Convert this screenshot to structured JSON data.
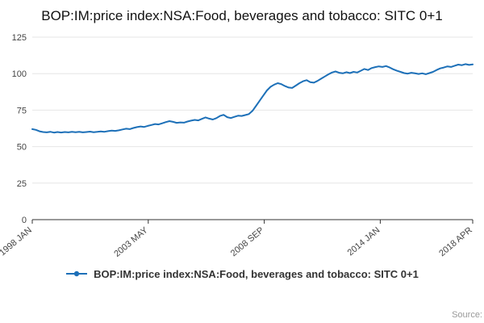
{
  "title": "BOP:IM:price index:NSA:Food, beverages and tobacco: SITC 0+1",
  "legend": {
    "label": "BOP:IM:price index:NSA:Food, beverages and tobacco: SITC 0+1"
  },
  "source": {
    "label": "Source:"
  },
  "colors": {
    "line": "#1d70b8",
    "grid": "#e6e6e6",
    "axis": "#333333",
    "tick_text": "#444444"
  },
  "chart_data": {
    "type": "line",
    "title": "BOP:IM:price index:NSA:Food, beverages and tobacco: SITC 0+1",
    "xlabel": "",
    "ylabel": "",
    "ylim": [
      0,
      125
    ],
    "y_ticks": [
      0,
      25,
      50,
      75,
      100,
      125
    ],
    "grid": true,
    "legend_position": "bottom",
    "x_range_months": [
      0,
      243
    ],
    "x_ticks": [
      {
        "month": 0,
        "label": "1998 JAN"
      },
      {
        "month": 64,
        "label": "2003 MAY"
      },
      {
        "month": 128,
        "label": "2008 SEP"
      },
      {
        "month": 192,
        "label": "2014 JAN"
      },
      {
        "month": 243,
        "label": "2018 APR"
      }
    ],
    "series": [
      {
        "name": "BOP:IM:price index:NSA:Food, beverages and tobacco: SITC 0+1",
        "color": "#1d70b8",
        "values": [
          62,
          61.5,
          60.5,
          60,
          59.8,
          60.2,
          59.6,
          60,
          59.7,
          60,
          59.8,
          60.1,
          59.9,
          60.2,
          59.8,
          60,
          60.3,
          59.9,
          60.1,
          60.4,
          60.2,
          60.6,
          61,
          60.8,
          61.2,
          61.8,
          62.3,
          62,
          62.8,
          63.4,
          63.8,
          63.5,
          64.2,
          64.8,
          65.5,
          65.2,
          66,
          66.8,
          67.5,
          67,
          66.3,
          66.6,
          66.4,
          67.2,
          67.8,
          68.3,
          68,
          69,
          70,
          69.2,
          68.6,
          69.5,
          71,
          71.8,
          70.2,
          69.6,
          70.4,
          71.2,
          71,
          71.6,
          72.3,
          74.5,
          78,
          81.5,
          85,
          88.5,
          91,
          92.5,
          93.5,
          92.8,
          91.5,
          90.5,
          90.2,
          91.8,
          93.5,
          94.8,
          95.5,
          94.2,
          93.8,
          95,
          96.5,
          98,
          99.5,
          100.8,
          101.5,
          100.6,
          100.2,
          101,
          100.4,
          101.2,
          100.8,
          102,
          103.2,
          102.5,
          103.8,
          104.5,
          105,
          104.6,
          105.2,
          104.2,
          103,
          102,
          101.2,
          100.4,
          100,
          100.6,
          100.2,
          99.8,
          100.2,
          99.6,
          100.4,
          101.2,
          102.5,
          103.6,
          104.2,
          105,
          104.6,
          105.4,
          106.2,
          105.8,
          106.5,
          106,
          106.3
        ]
      }
    ]
  }
}
